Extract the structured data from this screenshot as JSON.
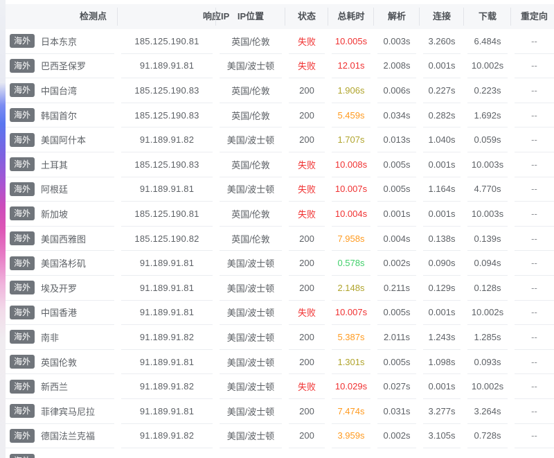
{
  "table": {
    "columns": [
      "检测点",
      "响应IP",
      "IP位置",
      "状态",
      "总耗时",
      "解析",
      "连接",
      "下载",
      "重定向"
    ],
    "badge_label": "海外",
    "rows": [
      {
        "node": "日本东京",
        "ip": "185.125.190.81",
        "location": "英国/伦敦",
        "status": "失败",
        "status_type": "fail",
        "total": "10.005s",
        "total_color": "red",
        "dns": "0.003s",
        "connect": "3.260s",
        "download": "6.484s",
        "redirect": "--"
      },
      {
        "node": "巴西圣保罗",
        "ip": "91.189.91.81",
        "location": "美国/波士顿",
        "status": "失败",
        "status_type": "fail",
        "total": "12.01s",
        "total_color": "red",
        "dns": "2.008s",
        "connect": "0.001s",
        "download": "10.002s",
        "redirect": "--"
      },
      {
        "node": "中国台湾",
        "ip": "185.125.190.83",
        "location": "英国/伦敦",
        "status": "200",
        "status_type": "ok",
        "total": "1.906s",
        "total_color": "olive",
        "dns": "0.006s",
        "connect": "0.227s",
        "download": "0.223s",
        "redirect": "--"
      },
      {
        "node": "韩国首尔",
        "ip": "185.125.190.83",
        "location": "英国/伦敦",
        "status": "200",
        "status_type": "ok",
        "total": "5.459s",
        "total_color": "orange",
        "dns": "0.034s",
        "connect": "0.282s",
        "download": "1.692s",
        "redirect": "--"
      },
      {
        "node": "美国阿什本",
        "ip": "91.189.91.82",
        "location": "美国/波士顿",
        "status": "200",
        "status_type": "ok",
        "total": "1.707s",
        "total_color": "olive",
        "dns": "0.013s",
        "connect": "1.040s",
        "download": "0.059s",
        "redirect": "--"
      },
      {
        "node": "土耳其",
        "ip": "185.125.190.83",
        "location": "英国/伦敦",
        "status": "失败",
        "status_type": "fail",
        "total": "10.008s",
        "total_color": "red",
        "dns": "0.005s",
        "connect": "0.001s",
        "download": "10.003s",
        "redirect": "--"
      },
      {
        "node": "阿根廷",
        "ip": "91.189.91.81",
        "location": "美国/波士顿",
        "status": "失败",
        "status_type": "fail",
        "total": "10.007s",
        "total_color": "red",
        "dns": "0.005s",
        "connect": "1.164s",
        "download": "4.770s",
        "redirect": "--"
      },
      {
        "node": "新加坡",
        "ip": "185.125.190.81",
        "location": "英国/伦敦",
        "status": "失败",
        "status_type": "fail",
        "total": "10.004s",
        "total_color": "red",
        "dns": "0.001s",
        "connect": "0.001s",
        "download": "10.003s",
        "redirect": "--"
      },
      {
        "node": "美国西雅图",
        "ip": "185.125.190.82",
        "location": "英国/伦敦",
        "status": "200",
        "status_type": "ok",
        "total": "7.958s",
        "total_color": "orange",
        "dns": "0.004s",
        "connect": "0.138s",
        "download": "0.139s",
        "redirect": "--"
      },
      {
        "node": "美国洛杉矶",
        "ip": "91.189.91.81",
        "location": "美国/波士顿",
        "status": "200",
        "status_type": "ok",
        "total": "0.578s",
        "total_color": "green",
        "dns": "0.002s",
        "connect": "0.090s",
        "download": "0.094s",
        "redirect": "--"
      },
      {
        "node": "埃及开罗",
        "ip": "91.189.91.81",
        "location": "美国/波士顿",
        "status": "200",
        "status_type": "ok",
        "total": "2.148s",
        "total_color": "olive",
        "dns": "0.211s",
        "connect": "0.129s",
        "download": "0.128s",
        "redirect": "--"
      },
      {
        "node": "中国香港",
        "ip": "91.189.91.81",
        "location": "美国/波士顿",
        "status": "失败",
        "status_type": "fail",
        "total": "10.007s",
        "total_color": "red",
        "dns": "0.005s",
        "connect": "0.001s",
        "download": "10.002s",
        "redirect": "--"
      },
      {
        "node": "南非",
        "ip": "91.189.91.82",
        "location": "美国/波士顿",
        "status": "200",
        "status_type": "ok",
        "total": "5.387s",
        "total_color": "orange",
        "dns": "2.011s",
        "connect": "1.243s",
        "download": "1.285s",
        "redirect": "--"
      },
      {
        "node": "英国伦敦",
        "ip": "91.189.91.81",
        "location": "美国/波士顿",
        "status": "200",
        "status_type": "ok",
        "total": "1.301s",
        "total_color": "olive",
        "dns": "0.005s",
        "connect": "1.098s",
        "download": "0.093s",
        "redirect": "--"
      },
      {
        "node": "新西兰",
        "ip": "91.189.91.82",
        "location": "美国/波士顿",
        "status": "失败",
        "status_type": "fail",
        "total": "10.029s",
        "total_color": "red",
        "dns": "0.027s",
        "connect": "0.001s",
        "download": "10.002s",
        "redirect": "--"
      },
      {
        "node": "菲律宾马尼拉",
        "ip": "91.189.91.81",
        "location": "美国/波士顿",
        "status": "200",
        "status_type": "ok",
        "total": "7.474s",
        "total_color": "orange",
        "dns": "0.031s",
        "connect": "3.277s",
        "download": "3.264s",
        "redirect": "--"
      },
      {
        "node": "德国法兰克福",
        "ip": "91.189.91.82",
        "location": "美国/波士顿",
        "status": "200",
        "status_type": "ok",
        "total": "3.959s",
        "total_color": "orange",
        "dns": "0.002s",
        "connect": "3.105s",
        "download": "0.728s",
        "redirect": "--"
      }
    ],
    "partial_row_badge": "海外"
  },
  "colors": {
    "red": "#f03131",
    "orange": "#ff9a1f",
    "olive": "#b0a42c",
    "green": "#3fcf69",
    "normal": "#5d6166",
    "muted": "#8c8f94",
    "badge_bg": "#70757b",
    "header_bg": "#f6f7f9"
  }
}
